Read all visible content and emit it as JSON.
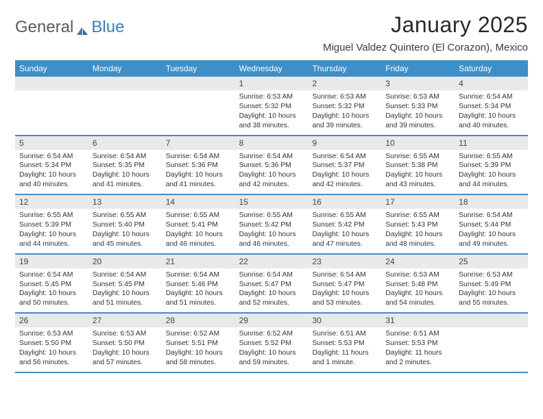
{
  "brand": {
    "part1": "General",
    "part2": "Blue"
  },
  "title": "January 2025",
  "location": "Miguel Valdez Quintero (El Corazon), Mexico",
  "colors": {
    "header_bg": "#3d8fc9",
    "header_text": "#ffffff",
    "daynum_bg": "#e9e9e9",
    "border": "#3d8fc9",
    "text": "#333333",
    "brand_blue": "#3b7fb8"
  },
  "weekdays": [
    "Sunday",
    "Monday",
    "Tuesday",
    "Wednesday",
    "Thursday",
    "Friday",
    "Saturday"
  ],
  "weeks": [
    [
      null,
      null,
      null,
      {
        "n": "1",
        "sunrise": "6:53 AM",
        "sunset": "5:32 PM",
        "dl_h": "10",
        "dl_m": "38"
      },
      {
        "n": "2",
        "sunrise": "6:53 AM",
        "sunset": "5:32 PM",
        "dl_h": "10",
        "dl_m": "39"
      },
      {
        "n": "3",
        "sunrise": "6:53 AM",
        "sunset": "5:33 PM",
        "dl_h": "10",
        "dl_m": "39"
      },
      {
        "n": "4",
        "sunrise": "6:54 AM",
        "sunset": "5:34 PM",
        "dl_h": "10",
        "dl_m": "40"
      }
    ],
    [
      {
        "n": "5",
        "sunrise": "6:54 AM",
        "sunset": "5:34 PM",
        "dl_h": "10",
        "dl_m": "40"
      },
      {
        "n": "6",
        "sunrise": "6:54 AM",
        "sunset": "5:35 PM",
        "dl_h": "10",
        "dl_m": "41"
      },
      {
        "n": "7",
        "sunrise": "6:54 AM",
        "sunset": "5:36 PM",
        "dl_h": "10",
        "dl_m": "41"
      },
      {
        "n": "8",
        "sunrise": "6:54 AM",
        "sunset": "5:36 PM",
        "dl_h": "10",
        "dl_m": "42"
      },
      {
        "n": "9",
        "sunrise": "6:54 AM",
        "sunset": "5:37 PM",
        "dl_h": "10",
        "dl_m": "42"
      },
      {
        "n": "10",
        "sunrise": "6:55 AM",
        "sunset": "5:38 PM",
        "dl_h": "10",
        "dl_m": "43"
      },
      {
        "n": "11",
        "sunrise": "6:55 AM",
        "sunset": "5:39 PM",
        "dl_h": "10",
        "dl_m": "44"
      }
    ],
    [
      {
        "n": "12",
        "sunrise": "6:55 AM",
        "sunset": "5:39 PM",
        "dl_h": "10",
        "dl_m": "44"
      },
      {
        "n": "13",
        "sunrise": "6:55 AM",
        "sunset": "5:40 PM",
        "dl_h": "10",
        "dl_m": "45"
      },
      {
        "n": "14",
        "sunrise": "6:55 AM",
        "sunset": "5:41 PM",
        "dl_h": "10",
        "dl_m": "46"
      },
      {
        "n": "15",
        "sunrise": "6:55 AM",
        "sunset": "5:42 PM",
        "dl_h": "10",
        "dl_m": "46"
      },
      {
        "n": "16",
        "sunrise": "6:55 AM",
        "sunset": "5:42 PM",
        "dl_h": "10",
        "dl_m": "47"
      },
      {
        "n": "17",
        "sunrise": "6:55 AM",
        "sunset": "5:43 PM",
        "dl_h": "10",
        "dl_m": "48"
      },
      {
        "n": "18",
        "sunrise": "6:54 AM",
        "sunset": "5:44 PM",
        "dl_h": "10",
        "dl_m": "49"
      }
    ],
    [
      {
        "n": "19",
        "sunrise": "6:54 AM",
        "sunset": "5:45 PM",
        "dl_h": "10",
        "dl_m": "50"
      },
      {
        "n": "20",
        "sunrise": "6:54 AM",
        "sunset": "5:45 PM",
        "dl_h": "10",
        "dl_m": "51"
      },
      {
        "n": "21",
        "sunrise": "6:54 AM",
        "sunset": "5:46 PM",
        "dl_h": "10",
        "dl_m": "51"
      },
      {
        "n": "22",
        "sunrise": "6:54 AM",
        "sunset": "5:47 PM",
        "dl_h": "10",
        "dl_m": "52"
      },
      {
        "n": "23",
        "sunrise": "6:54 AM",
        "sunset": "5:47 PM",
        "dl_h": "10",
        "dl_m": "53"
      },
      {
        "n": "24",
        "sunrise": "6:53 AM",
        "sunset": "5:48 PM",
        "dl_h": "10",
        "dl_m": "54"
      },
      {
        "n": "25",
        "sunrise": "6:53 AM",
        "sunset": "5:49 PM",
        "dl_h": "10",
        "dl_m": "55"
      }
    ],
    [
      {
        "n": "26",
        "sunrise": "6:53 AM",
        "sunset": "5:50 PM",
        "dl_h": "10",
        "dl_m": "56"
      },
      {
        "n": "27",
        "sunrise": "6:53 AM",
        "sunset": "5:50 PM",
        "dl_h": "10",
        "dl_m": "57"
      },
      {
        "n": "28",
        "sunrise": "6:52 AM",
        "sunset": "5:51 PM",
        "dl_h": "10",
        "dl_m": "58"
      },
      {
        "n": "29",
        "sunrise": "6:52 AM",
        "sunset": "5:52 PM",
        "dl_h": "10",
        "dl_m": "59"
      },
      {
        "n": "30",
        "sunrise": "6:51 AM",
        "sunset": "5:53 PM",
        "dl_h": "11",
        "dl_m": "1"
      },
      {
        "n": "31",
        "sunrise": "6:51 AM",
        "sunset": "5:53 PM",
        "dl_h": "11",
        "dl_m": "2"
      },
      null
    ]
  ],
  "labels": {
    "sunrise_prefix": "Sunrise: ",
    "sunset_prefix": "Sunset: ",
    "daylight_prefix": "Daylight: ",
    "hours_word": " hours",
    "and_word": "and ",
    "minute_word": " minute.",
    "minutes_word": " minutes."
  }
}
